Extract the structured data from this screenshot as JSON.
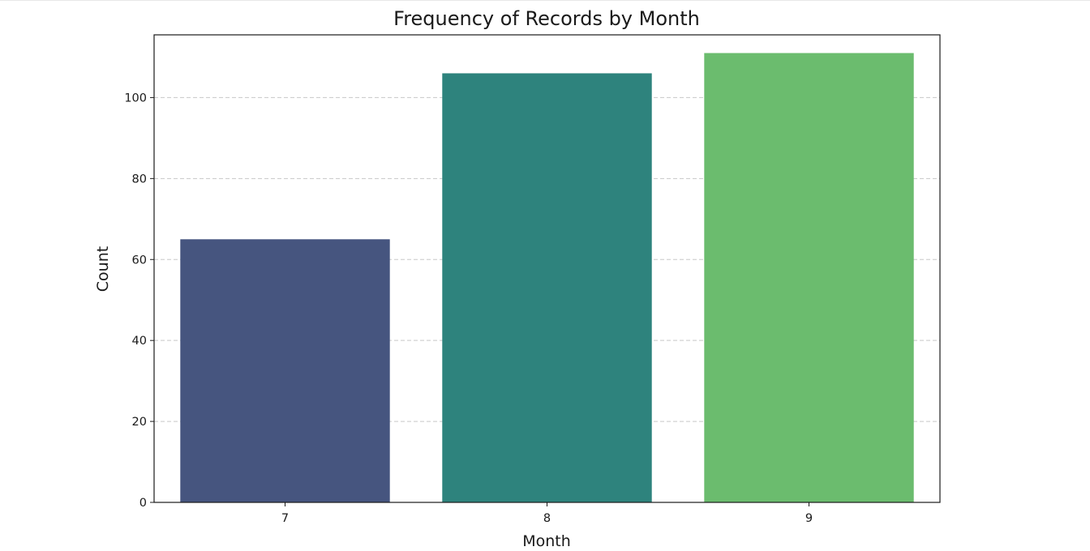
{
  "chart_data": {
    "type": "bar",
    "title": "Frequency of Records by Month",
    "xlabel": "Month",
    "ylabel": "Count",
    "categories": [
      "7",
      "8",
      "9"
    ],
    "values": [
      65,
      106,
      111
    ],
    "colors": [
      "#46557f",
      "#2e837d",
      "#6bbc6e"
    ],
    "ylim": [
      0,
      115.5
    ],
    "yticks": [
      0,
      20,
      40,
      60,
      80,
      100
    ],
    "grid": "y-axis dashed",
    "legend": "none"
  }
}
